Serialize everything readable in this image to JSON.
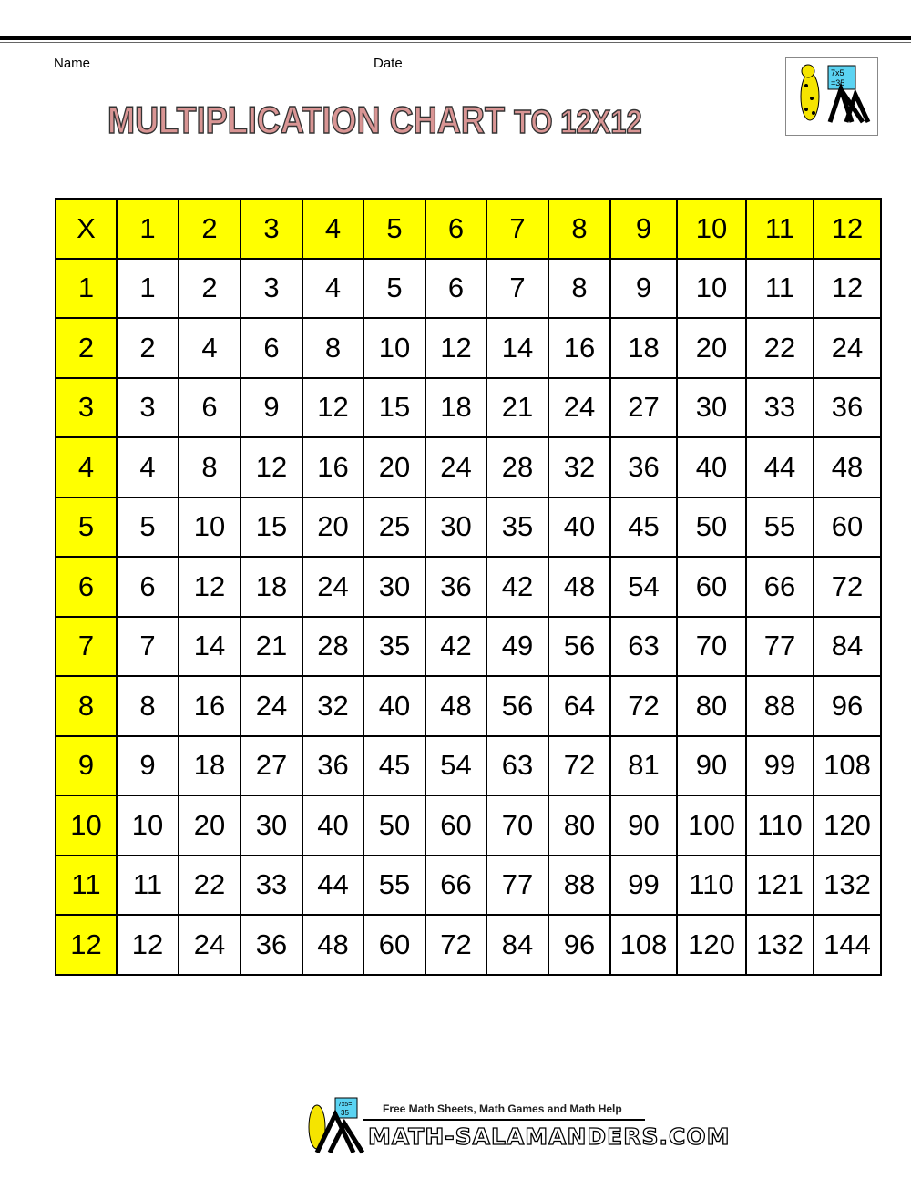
{
  "header": {
    "name_label": "Name",
    "date_label": "Date",
    "title_main": "MULTIPLICATION CHART",
    "title_suffix": "TO 12X12",
    "logo_text": "7x5 =35"
  },
  "table": {
    "corner": "X",
    "columns": [
      "1",
      "2",
      "3",
      "4",
      "5",
      "6",
      "7",
      "8",
      "9",
      "10",
      "11",
      "12"
    ],
    "rows": [
      {
        "label": "1",
        "values": [
          "1",
          "2",
          "3",
          "4",
          "5",
          "6",
          "7",
          "8",
          "9",
          "10",
          "11",
          "12"
        ]
      },
      {
        "label": "2",
        "values": [
          "2",
          "4",
          "6",
          "8",
          "10",
          "12",
          "14",
          "16",
          "18",
          "20",
          "22",
          "24"
        ]
      },
      {
        "label": "3",
        "values": [
          "3",
          "6",
          "9",
          "12",
          "15",
          "18",
          "21",
          "24",
          "27",
          "30",
          "33",
          "36"
        ]
      },
      {
        "label": "4",
        "values": [
          "4",
          "8",
          "12",
          "16",
          "20",
          "24",
          "28",
          "32",
          "36",
          "40",
          "44",
          "48"
        ]
      },
      {
        "label": "5",
        "values": [
          "5",
          "10",
          "15",
          "20",
          "25",
          "30",
          "35",
          "40",
          "45",
          "50",
          "55",
          "60"
        ]
      },
      {
        "label": "6",
        "values": [
          "6",
          "12",
          "18",
          "24",
          "30",
          "36",
          "42",
          "48",
          "54",
          "60",
          "66",
          "72"
        ]
      },
      {
        "label": "7",
        "values": [
          "7",
          "14",
          "21",
          "28",
          "35",
          "42",
          "49",
          "56",
          "63",
          "70",
          "77",
          "84"
        ]
      },
      {
        "label": "8",
        "values": [
          "8",
          "16",
          "24",
          "32",
          "40",
          "48",
          "56",
          "64",
          "72",
          "80",
          "88",
          "96"
        ]
      },
      {
        "label": "9",
        "values": [
          "9",
          "18",
          "27",
          "36",
          "45",
          "54",
          "63",
          "72",
          "81",
          "90",
          "99",
          "108"
        ]
      },
      {
        "label": "10",
        "values": [
          "10",
          "20",
          "30",
          "40",
          "50",
          "60",
          "70",
          "80",
          "90",
          "100",
          "110",
          "120"
        ]
      },
      {
        "label": "11",
        "values": [
          "11",
          "22",
          "33",
          "44",
          "55",
          "66",
          "77",
          "88",
          "99",
          "110",
          "121",
          "132"
        ]
      },
      {
        "label": "12",
        "values": [
          "12",
          "24",
          "36",
          "48",
          "60",
          "72",
          "84",
          "96",
          "108",
          "120",
          "132",
          "144"
        ]
      }
    ],
    "header_color": "#ffff00"
  },
  "footer": {
    "tagline": "Free Math Sheets, Math Games and Math Help",
    "site": "MATH-SALAMANDERS.COM",
    "logo_text": "7x5= 35"
  }
}
